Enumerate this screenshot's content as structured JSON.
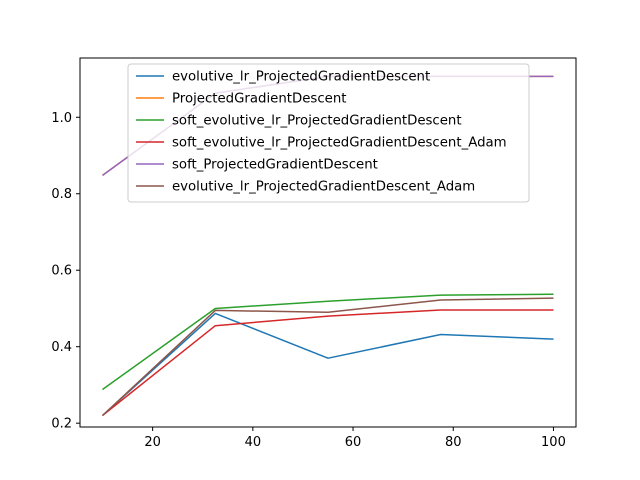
{
  "chart_data": {
    "type": "line",
    "title": "",
    "xlabel": "",
    "ylabel": "",
    "x": [
      10,
      32.5,
      55,
      77.5,
      100
    ],
    "xlim": [
      5.5,
      104.5
    ],
    "ylim": [
      0.19,
      1.155
    ],
    "xticks": [
      20,
      40,
      60,
      80,
      100
    ],
    "yticks": [
      0.2,
      0.4,
      0.6,
      0.8,
      1.0
    ],
    "xtick_labels": [
      "20",
      "40",
      "60",
      "80",
      "100"
    ],
    "ytick_labels": [
      "0.2",
      "0.4",
      "0.6",
      "0.8",
      "1.0"
    ],
    "grid": false,
    "legend_position": "top-center",
    "series": [
      {
        "name": "evolutive_lr_ProjectedGradientDescent",
        "color": "#1f77b4",
        "values": [
          0.22,
          0.487,
          0.37,
          0.432,
          0.42
        ]
      },
      {
        "name": "ProjectedGradientDescent",
        "color": "#ff7f0e",
        "values": [
          0.848,
          1.063,
          1.107,
          1.107,
          1.107
        ]
      },
      {
        "name": "soft_evolutive_lr_ProjectedGradientDescent",
        "color": "#2ca02c",
        "values": [
          0.288,
          0.5,
          0.519,
          0.535,
          0.537
        ]
      },
      {
        "name": "soft_evolutive_lr_ProjectedGradientDescent_Adam",
        "color": "#d62728",
        "values": [
          0.22,
          0.455,
          0.48,
          0.496,
          0.496
        ]
      },
      {
        "name": "soft_ProjectedGradientDescent",
        "color": "#9467bd",
        "values": [
          0.848,
          1.063,
          1.107,
          1.107,
          1.107
        ]
      },
      {
        "name": "evolutive_lr_ProjectedGradientDescent_Adam",
        "color": "#8c564b",
        "values": [
          0.22,
          0.495,
          0.49,
          0.522,
          0.527
        ]
      }
    ]
  }
}
